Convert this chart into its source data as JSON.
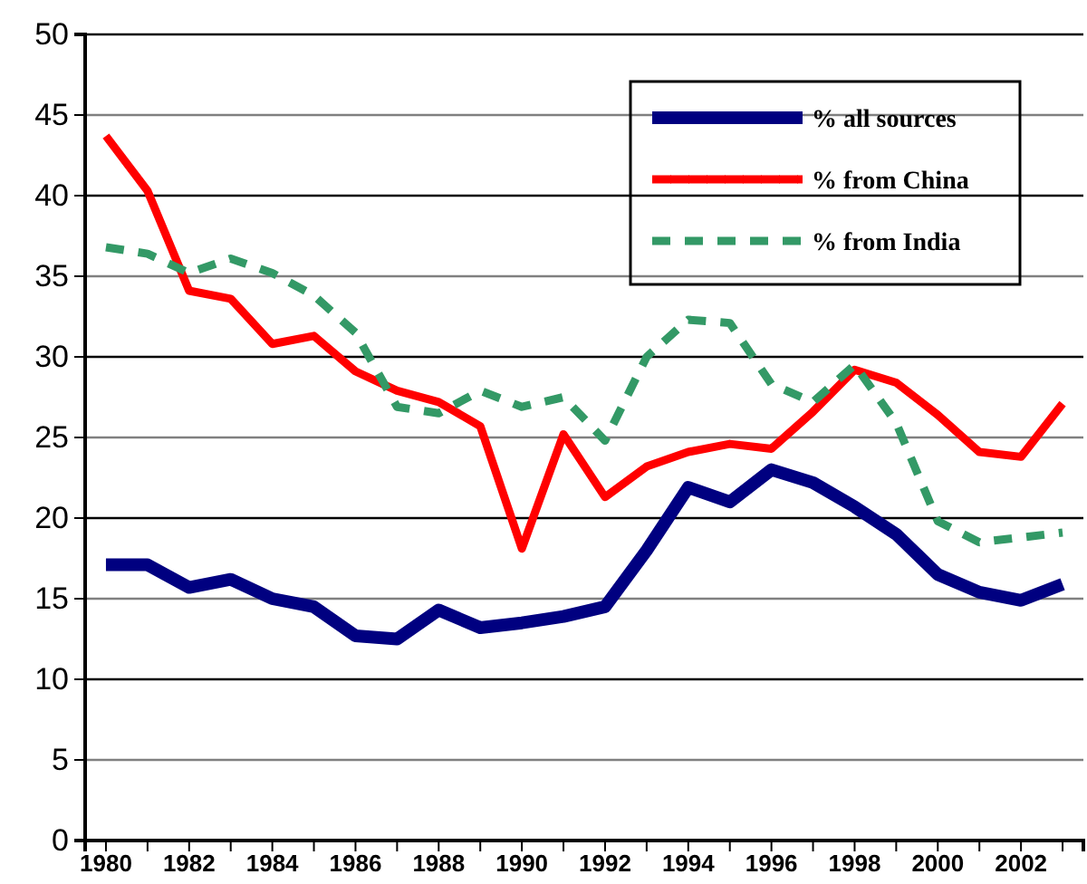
{
  "chart_data": {
    "type": "line",
    "x": [
      1980,
      1981,
      1982,
      1983,
      1984,
      1985,
      1986,
      1987,
      1988,
      1989,
      1990,
      1991,
      1992,
      1993,
      1994,
      1995,
      1996,
      1997,
      1998,
      1999,
      2000,
      2001,
      2002,
      2003
    ],
    "series": [
      {
        "name": "% all sources",
        "color": "#000080",
        "values": [
          17.1,
          17.1,
          15.7,
          16.2,
          15.0,
          14.5,
          12.7,
          12.5,
          14.3,
          13.2,
          13.5,
          13.9,
          14.5,
          18.0,
          21.9,
          21.0,
          23.0,
          22.2,
          20.7,
          19.0,
          16.5,
          15.4,
          14.9,
          15.9
        ]
      },
      {
        "name": "% from China",
        "color": "#ff0000",
        "values": [
          43.7,
          40.3,
          34.1,
          33.6,
          30.8,
          31.3,
          29.1,
          27.9,
          27.2,
          25.7,
          18.1,
          25.2,
          21.3,
          23.2,
          24.1,
          24.6,
          24.3,
          26.6,
          29.2,
          28.4,
          26.4,
          24.1,
          23.8,
          27.1
        ]
      },
      {
        "name": "% from India",
        "color": "#339966",
        "line_style": "dashed",
        "values": [
          36.8,
          36.4,
          35.2,
          36.1,
          35.2,
          33.8,
          31.5,
          26.9,
          26.5,
          27.9,
          26.9,
          27.5,
          24.8,
          30.0,
          32.3,
          32.1,
          28.3,
          27.2,
          29.5,
          25.9,
          19.8,
          18.5,
          18.8,
          19.1
        ]
      }
    ],
    "xlim": [
      1979.5,
      2003.5
    ],
    "xticks": [
      1980,
      {
        "value": 1981,
        "label": null
      },
      1982,
      {
        "value": 1983,
        "label": null
      },
      1984,
      {
        "value": 1985,
        "label": null
      },
      1986,
      {
        "value": 1987,
        "label": null
      },
      1988,
      {
        "value": 1989,
        "label": null
      },
      1990,
      {
        "value": 1991,
        "label": null
      },
      1992,
      {
        "value": 1993,
        "label": null
      },
      1994,
      {
        "value": 1995,
        "label": null
      },
      1996,
      {
        "value": 1997,
        "label": null
      },
      1998,
      {
        "value": 1999,
        "label": null
      },
      2000,
      {
        "value": 2001,
        "label": null
      },
      2002,
      {
        "value": 2003,
        "label": null
      }
    ],
    "ylim": [
      0,
      50
    ],
    "yticks": [
      0,
      5,
      10,
      15,
      20,
      25,
      30,
      35,
      40,
      45,
      50
    ],
    "grid": "y",
    "legend": "top right",
    "line_style": "solid"
  }
}
